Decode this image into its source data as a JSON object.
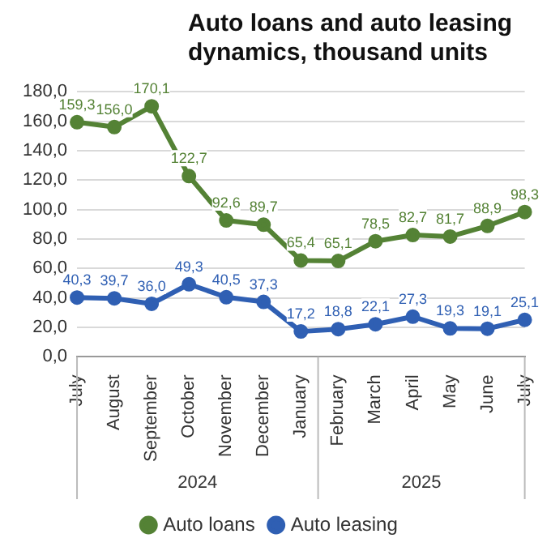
{
  "chart_data": {
    "type": "line",
    "title": "Auto loans and auto leasing dynamics, thousand units",
    "categories": [
      "July",
      "August",
      "September",
      "October",
      "November",
      "December",
      "January",
      "February",
      "March",
      "April",
      "May",
      "June",
      "July"
    ],
    "series": [
      {
        "name": "Auto loans",
        "color": "#548235",
        "values": [
          159.3,
          156.0,
          170.1,
          122.7,
          92.6,
          89.7,
          65.4,
          65.1,
          78.5,
          82.7,
          81.7,
          88.9,
          98.3
        ],
        "value_labels": [
          "159,3",
          "156,0",
          "170,1",
          "122,7",
          "92,6",
          "89,7",
          "65,4",
          "65,1",
          "78,5",
          "82,7",
          "81,7",
          "88,9",
          "98,3"
        ]
      },
      {
        "name": "Auto leasing",
        "color": "#2f5fb3",
        "values": [
          40.3,
          39.7,
          36.0,
          49.3,
          40.5,
          37.3,
          17.2,
          18.8,
          22.1,
          27.3,
          19.3,
          19.1,
          25.1
        ],
        "value_labels": [
          "40,3",
          "39,7",
          "36,0",
          "49,3",
          "40,5",
          "37,3",
          "17,2",
          "18,8",
          "22,1",
          "27,3",
          "19,3",
          "19,1",
          "25,1"
        ]
      }
    ],
    "annotations": [
      "2024",
      "2025"
    ],
    "ylim": [
      0,
      180
    ],
    "yticks": [
      {
        "value": 0,
        "label": "0,0"
      },
      {
        "value": 20,
        "label": "20,0"
      },
      {
        "value": 40,
        "label": "40,0"
      },
      {
        "value": 60,
        "label": "60,0"
      },
      {
        "value": 80,
        "label": "80,0"
      },
      {
        "value": 100,
        "label": "100,0"
      },
      {
        "value": 120,
        "label": "120,0"
      },
      {
        "value": 140,
        "label": "140,0"
      },
      {
        "value": 160,
        "label": "160,0"
      },
      {
        "value": 180,
        "label": "180,0"
      }
    ],
    "grid": "y",
    "legend": "bottom",
    "marker": "circle",
    "line_style": "solid"
  }
}
